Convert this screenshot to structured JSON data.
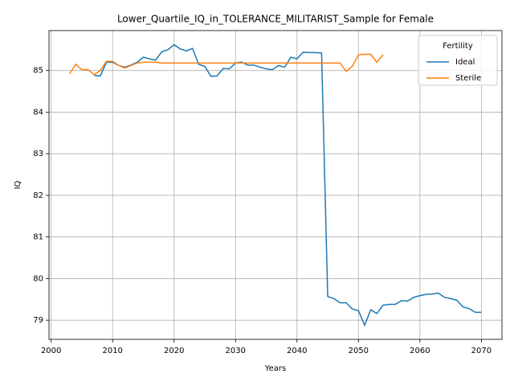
{
  "chart_data": {
    "type": "line",
    "title": "Lower_Quartile_IQ_in_TOLERANCE_MILITARIST_Sample for Female",
    "x_label": "Years",
    "y_label": "IQ",
    "x": [
      2003,
      2004,
      2005,
      2006,
      2007,
      2008,
      2009,
      2010,
      2011,
      2012,
      2013,
      2014,
      2015,
      2016,
      2017,
      2018,
      2019,
      2020,
      2021,
      2022,
      2023,
      2024,
      2025,
      2026,
      2027,
      2028,
      2029,
      2030,
      2031,
      2032,
      2033,
      2034,
      2035,
      2036,
      2037,
      2038,
      2039,
      2040,
      2041,
      2042,
      2043,
      2044,
      2045,
      2046,
      2047,
      2048,
      2049,
      2050,
      2051,
      2052,
      2053,
      2054,
      2055,
      2056,
      2057,
      2058,
      2059,
      2060,
      2061,
      2062,
      2063,
      2064,
      2065,
      2066,
      2067,
      2068,
      2069,
      2070
    ],
    "series": [
      {
        "name": "Ideal",
        "color": "#1f77b4",
        "values": [
          null,
          null,
          null,
          null,
          84.88,
          84.87,
          85.2,
          85.2,
          85.12,
          85.08,
          85.13,
          85.2,
          85.32,
          85.28,
          85.25,
          85.45,
          85.5,
          85.62,
          85.52,
          85.47,
          85.53,
          85.15,
          85.1,
          84.86,
          84.87,
          85.05,
          85.04,
          85.18,
          85.2,
          85.13,
          85.13,
          85.08,
          85.04,
          85.02,
          85.12,
          85.08,
          85.32,
          85.28,
          85.44,
          85.43,
          85.43,
          85.42,
          79.57,
          79.52,
          79.42,
          79.42,
          79.27,
          79.23,
          78.88,
          79.25,
          79.16,
          79.36,
          79.38,
          79.38,
          79.47,
          79.46,
          79.55,
          79.59,
          79.62,
          79.63,
          79.65,
          79.55,
          79.52,
          79.48,
          79.32,
          79.28,
          79.19,
          79.19
        ]
      },
      {
        "name": "Sterile",
        "color": "#ff7f0e",
        "values": [
          84.92,
          85.15,
          85.02,
          85.02,
          84.9,
          85.0,
          85.22,
          85.22,
          85.12,
          85.06,
          85.12,
          85.18,
          85.2,
          85.2,
          85.2,
          85.18,
          85.18,
          85.18,
          85.18,
          85.18,
          85.18,
          85.18,
          85.18,
          85.18,
          85.18,
          85.18,
          85.18,
          85.18,
          85.18,
          85.18,
          85.18,
          85.18,
          85.18,
          85.18,
          85.18,
          85.18,
          85.18,
          85.18,
          85.18,
          85.18,
          85.18,
          85.18,
          85.18,
          85.18,
          85.18,
          84.98,
          85.1,
          85.38,
          85.39,
          85.39,
          85.2,
          85.38,
          null,
          null,
          null,
          null,
          null,
          null,
          null,
          null,
          null,
          null,
          null,
          null,
          null,
          null,
          null,
          null
        ]
      }
    ],
    "xlim": [
      1999.65,
      2073.35
    ],
    "ylim": [
      78.54,
      85.96
    ],
    "xticks": [
      2000,
      2010,
      2020,
      2030,
      2040,
      2050,
      2060,
      2070
    ],
    "yticks": [
      79,
      80,
      81,
      82,
      83,
      84,
      85
    ],
    "grid": true,
    "legend_title": "Fertility",
    "legend_loc": "upper right"
  }
}
